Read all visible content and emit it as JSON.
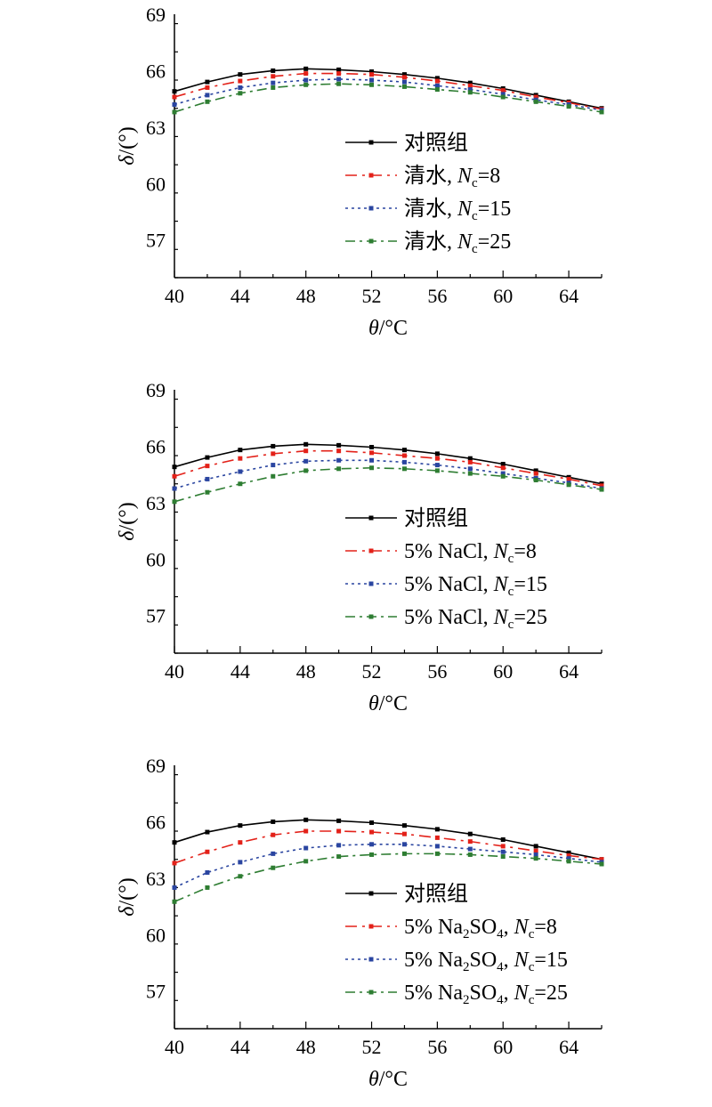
{
  "chart_data": [
    {
      "type": "line",
      "xlabel": "θ/°C",
      "ylabel": "δ/(°)",
      "xlim": [
        40,
        66
      ],
      "ylim": [
        55,
        69
      ],
      "xticks": [
        40,
        44,
        48,
        52,
        56,
        60,
        64
      ],
      "yticks": [
        57,
        60,
        63,
        66,
        69
      ],
      "x": [
        40,
        42,
        44,
        46,
        48,
        50,
        52,
        54,
        56,
        58,
        60,
        62,
        64,
        66
      ],
      "legend_position": "center-right",
      "series": [
        {
          "name": "对照组",
          "prefix": "对照组",
          "n": "",
          "color": "#000000",
          "dash": "",
          "values": [
            64.9,
            65.4,
            65.8,
            66.0,
            66.1,
            66.05,
            65.95,
            65.8,
            65.6,
            65.35,
            65.05,
            64.7,
            64.35,
            64.0
          ]
        },
        {
          "name": "清水, Nc=8",
          "prefix": "清水, ",
          "n": "8",
          "color": "#e32119",
          "dash": "13,6,3,6",
          "values": [
            64.6,
            65.1,
            65.45,
            65.7,
            65.85,
            65.85,
            65.8,
            65.65,
            65.45,
            65.2,
            64.95,
            64.6,
            64.3,
            63.95
          ]
        },
        {
          "name": "清水, Nc=15",
          "prefix": "清水, ",
          "n": "15",
          "color": "#2a45a0",
          "dash": "3,4",
          "values": [
            64.2,
            64.7,
            65.1,
            65.35,
            65.5,
            65.55,
            65.5,
            65.4,
            65.2,
            65.0,
            64.75,
            64.45,
            64.2,
            63.9
          ]
        },
        {
          "name": "清水, Nc=25",
          "prefix": "清水, ",
          "n": "25",
          "color": "#2e7d32",
          "dash": "11,5,3,5",
          "values": [
            63.8,
            64.35,
            64.8,
            65.1,
            65.25,
            65.3,
            65.25,
            65.15,
            65.0,
            64.85,
            64.6,
            64.35,
            64.1,
            63.8
          ]
        }
      ]
    },
    {
      "type": "line",
      "xlabel": "θ/°C",
      "ylabel": "δ/(°)",
      "xlim": [
        40,
        66
      ],
      "ylim": [
        55,
        69
      ],
      "xticks": [
        40,
        44,
        48,
        52,
        56,
        60,
        64
      ],
      "yticks": [
        57,
        60,
        63,
        66,
        69
      ],
      "x": [
        40,
        42,
        44,
        46,
        48,
        50,
        52,
        54,
        56,
        58,
        60,
        62,
        64,
        66
      ],
      "legend_position": "center-right",
      "series": [
        {
          "name": "对照组",
          "prefix": "对照组",
          "n": "",
          "color": "#000000",
          "dash": "",
          "values": [
            64.9,
            65.4,
            65.8,
            66.0,
            66.1,
            66.05,
            65.95,
            65.8,
            65.6,
            65.35,
            65.05,
            64.7,
            64.35,
            64.0
          ]
        },
        {
          "name": "5% NaCl, Nc=8",
          "prefix": "5% NaCl, ",
          "n": "8",
          "color": "#e32119",
          "dash": "13,6,3,6",
          "values": [
            64.4,
            64.95,
            65.35,
            65.6,
            65.75,
            65.75,
            65.65,
            65.5,
            65.35,
            65.15,
            64.85,
            64.55,
            64.25,
            63.9
          ]
        },
        {
          "name": "5% NaCl, Nc=15",
          "prefix": "5% NaCl, ",
          "n": "15",
          "color": "#2a45a0",
          "dash": "3,4",
          "values": [
            63.75,
            64.25,
            64.65,
            65.0,
            65.2,
            65.25,
            65.25,
            65.15,
            65.0,
            64.8,
            64.55,
            64.3,
            64.05,
            63.75
          ]
        },
        {
          "name": "5% NaCl, Nc=25",
          "prefix": "5% NaCl, ",
          "n": "25",
          "color": "#2e7d32",
          "dash": "11,5,3,5",
          "values": [
            63.05,
            63.55,
            64.0,
            64.4,
            64.7,
            64.8,
            64.85,
            64.8,
            64.7,
            64.55,
            64.4,
            64.2,
            63.95,
            63.7
          ]
        }
      ]
    },
    {
      "type": "line",
      "xlabel": "θ/°C",
      "ylabel": "δ/(°)",
      "xlim": [
        40,
        66
      ],
      "ylim": [
        55,
        69
      ],
      "xticks": [
        40,
        44,
        48,
        52,
        56,
        60,
        64
      ],
      "yticks": [
        57,
        60,
        63,
        66,
        69
      ],
      "x": [
        40,
        42,
        44,
        46,
        48,
        50,
        52,
        54,
        56,
        58,
        60,
        62,
        64,
        66
      ],
      "legend_position": "center-right",
      "series": [
        {
          "name": "对照组",
          "prefix": "对照组",
          "n": "",
          "color": "#000000",
          "dash": "",
          "values": [
            64.9,
            65.45,
            65.8,
            66.0,
            66.1,
            66.05,
            65.95,
            65.8,
            65.6,
            65.35,
            65.05,
            64.7,
            64.35,
            64.0
          ]
        },
        {
          "name": "5% Na2SO4, Nc=8",
          "prefix": "5% Na",
          "sub": "2",
          "mid": "SO",
          "sub2": "4",
          "tail": ", ",
          "n": "8",
          "color": "#e32119",
          "dash": "13,6,3,6",
          "values": [
            63.8,
            64.4,
            64.9,
            65.3,
            65.5,
            65.5,
            65.45,
            65.35,
            65.15,
            64.95,
            64.7,
            64.45,
            64.2,
            64.0
          ]
        },
        {
          "name": "5% Na2SO4, Nc=15",
          "prefix": "5% Na",
          "sub": "2",
          "mid": "SO",
          "sub2": "4",
          "tail": ", ",
          "n": "15",
          "color": "#2a45a0",
          "dash": "3,4",
          "values": [
            62.5,
            63.3,
            63.85,
            64.3,
            64.6,
            64.75,
            64.8,
            64.8,
            64.7,
            64.55,
            64.4,
            64.25,
            64.05,
            63.85
          ]
        },
        {
          "name": "5% Na2SO4, Nc=25",
          "prefix": "5% Na",
          "sub": "2",
          "mid": "SO",
          "sub2": "4",
          "tail": ", ",
          "n": "25",
          "color": "#2e7d32",
          "dash": "11,5,3,5",
          "values": [
            61.75,
            62.5,
            63.1,
            63.55,
            63.9,
            64.15,
            64.25,
            64.3,
            64.3,
            64.25,
            64.15,
            64.05,
            63.9,
            63.75
          ]
        }
      ]
    }
  ]
}
